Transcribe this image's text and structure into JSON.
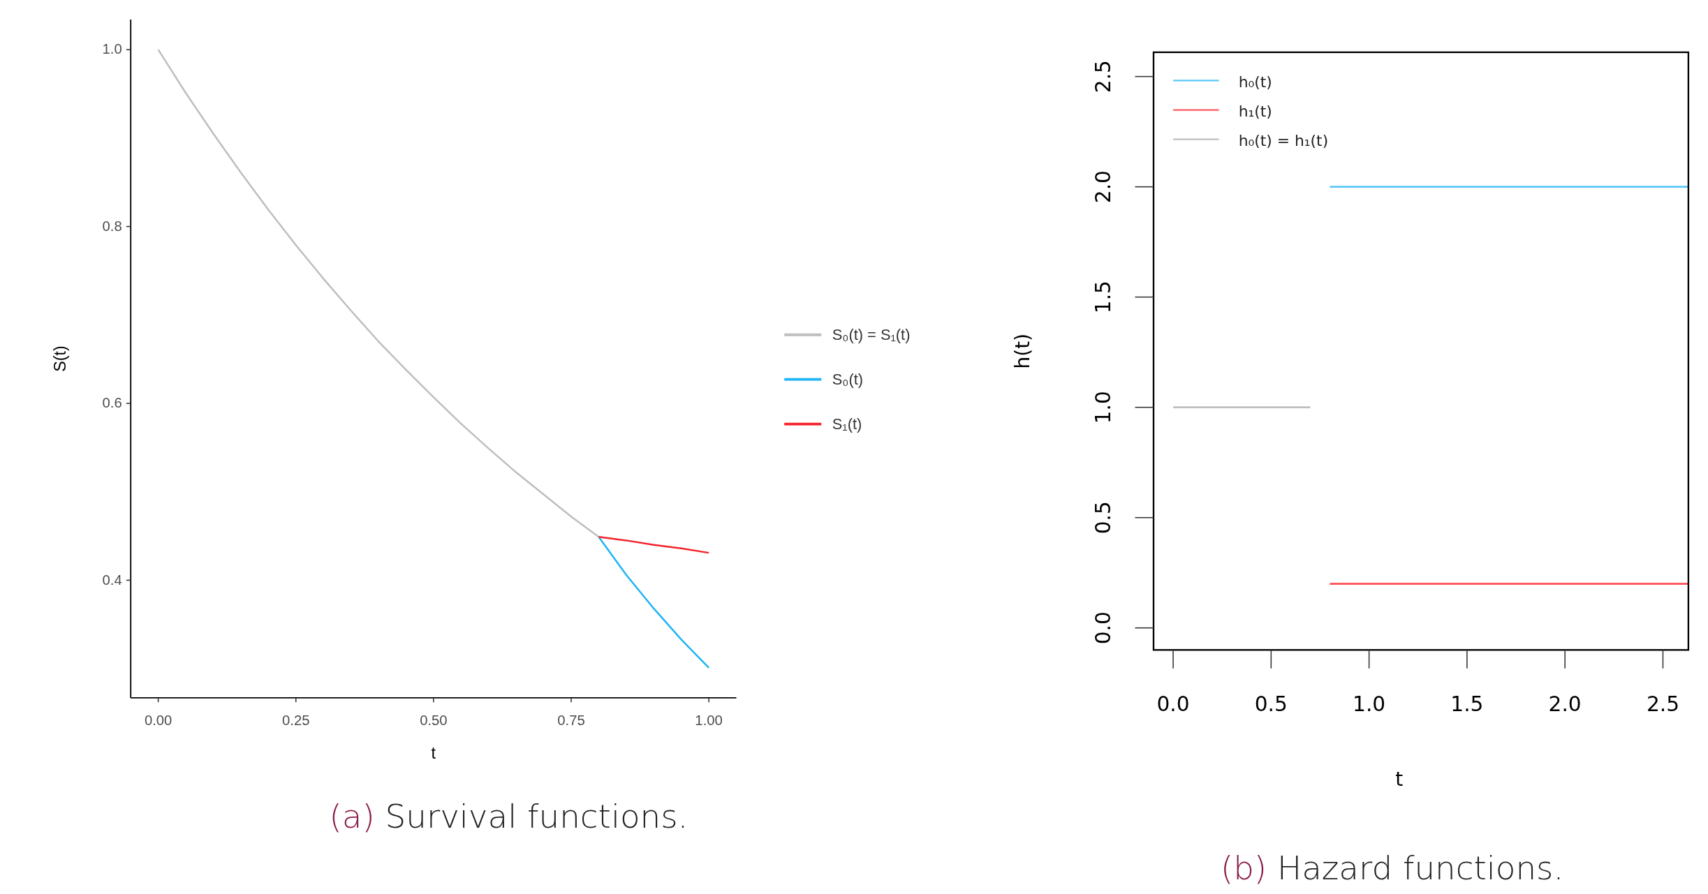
{
  "chart_data": [
    {
      "type": "line",
      "xlabel": "t",
      "ylabel": "S(t)",
      "xlim": [
        -0.05,
        1.05
      ],
      "ylim": [
        0.267,
        1.034
      ],
      "xticks": [
        {
          "value": 0,
          "label": "0.00"
        },
        {
          "value": 0.25,
          "label": "0.25"
        },
        {
          "value": 0.5,
          "label": "0.50"
        },
        {
          "value": 0.75,
          "label": "0.75"
        },
        {
          "value": 1,
          "label": "1.00"
        }
      ],
      "yticks": [
        {
          "value": 0.4,
          "label": "0.4"
        },
        {
          "value": 0.6,
          "label": "0.6"
        },
        {
          "value": 0.8,
          "label": "0.8"
        },
        {
          "value": 1,
          "label": "1.0"
        }
      ],
      "grid": false,
      "legend": "right",
      "annotations": [
        "(a) Survival functions."
      ],
      "series": [
        {
          "name": "S₀(t) = S₁(t)",
          "color": "#bebebe",
          "x": [
            0,
            0.05,
            0.1,
            0.15,
            0.2,
            0.25,
            0.3,
            0.35,
            0.4,
            0.45,
            0.5,
            0.55,
            0.6,
            0.65,
            0.7,
            0.75,
            0.8
          ],
          "values": [
            1,
            0.951,
            0.905,
            0.861,
            0.819,
            0.779,
            0.741,
            0.705,
            0.67,
            0.638,
            0.607,
            0.577,
            0.549,
            0.522,
            0.497,
            0.472,
            0.449
          ]
        },
        {
          "name": "S₀(t)",
          "color": "#1eb4f5",
          "x": [
            0.8,
            0.85,
            0.9,
            0.95,
            1
          ],
          "values": [
            0.449,
            0.406,
            0.368,
            0.333,
            0.301
          ]
        },
        {
          "name": "S₁(t)",
          "color": "#f5222d",
          "x": [
            0.8,
            0.85,
            0.9,
            0.95,
            1
          ],
          "values": [
            0.449,
            0.445,
            0.44,
            0.436,
            0.431
          ]
        }
      ]
    },
    {
      "type": "line",
      "xlabel": "t",
      "ylabel": "h(t)",
      "xlim": [
        -0.1,
        2.63
      ],
      "ylim": [
        -0.1,
        2.61
      ],
      "xticks": [
        {
          "value": 0,
          "label": "0.0"
        },
        {
          "value": 0.5,
          "label": "0.5"
        },
        {
          "value": 1,
          "label": "1.0"
        },
        {
          "value": 1.5,
          "label": "1.5"
        },
        {
          "value": 2,
          "label": "2.0"
        },
        {
          "value": 2.5,
          "label": "2.5"
        }
      ],
      "yticks": [
        {
          "value": 0,
          "label": "0.0"
        },
        {
          "value": 0.5,
          "label": "0.5"
        },
        {
          "value": 1,
          "label": "1.0"
        },
        {
          "value": 1.5,
          "label": "1.5"
        },
        {
          "value": 2,
          "label": "2.0"
        },
        {
          "value": 2.5,
          "label": "2.5"
        }
      ],
      "grid": false,
      "legend": "top left",
      "annotations": [
        "(b) Hazard functions."
      ],
      "series": [
        {
          "name": "h₀(t)",
          "color": "#5ac8fa",
          "x": [
            0.8,
            2.63
          ],
          "values": [
            2,
            2
          ]
        },
        {
          "name": "h₁(t)",
          "color": "#ff5a5f",
          "x": [
            0.8,
            2.63
          ],
          "values": [
            0.2,
            0.2
          ]
        },
        {
          "name": "h₀(t) = h₁(t)",
          "color": "#bebebe",
          "x": [
            0,
            0.7
          ],
          "values": [
            1,
            1
          ]
        }
      ]
    }
  ]
}
